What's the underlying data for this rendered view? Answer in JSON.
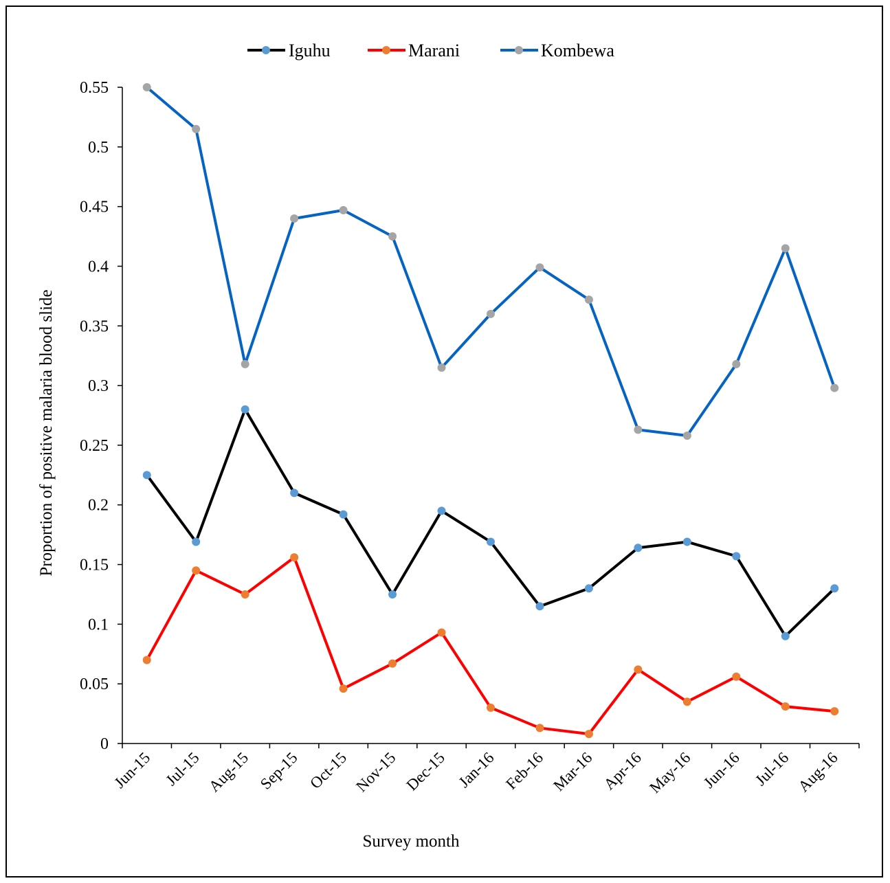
{
  "chart_data": {
    "type": "line",
    "xlabel": "Survey month",
    "ylabel": "Proportion of positive malaria blood slide",
    "ylim": [
      0,
      0.55
    ],
    "yticks": [
      "0",
      "0.05",
      "0.1",
      "0.15",
      "0.2",
      "0.25",
      "0.3",
      "0.35",
      "0.4",
      "0.45",
      "0.5",
      "0.55"
    ],
    "categories": [
      "Jun-15",
      "Jul-15",
      "Aug-15",
      "Sep-15",
      "Oct-15",
      "Nov-15",
      "Dec-15",
      "Jan-16",
      "Feb-16",
      "Mar-16",
      "Apr-16",
      "May-16",
      "Jun-16",
      "Jul-16",
      "Aug-16"
    ],
    "legend_position": "top-center",
    "grid": false,
    "series": [
      {
        "name": "Iguhu",
        "line_color": "#000000",
        "marker_color": "#5b9bd5",
        "values": [
          0.225,
          0.169,
          0.28,
          0.21,
          0.192,
          0.125,
          0.195,
          0.169,
          0.115,
          0.13,
          0.164,
          0.169,
          0.157,
          0.09,
          0.13
        ]
      },
      {
        "name": "Marani",
        "line_color": "#ff0000",
        "marker_color": "#ed7d31",
        "values": [
          0.07,
          0.145,
          0.125,
          0.156,
          0.046,
          0.067,
          0.093,
          0.03,
          0.013,
          0.008,
          0.062,
          0.035,
          0.056,
          0.031,
          0.027
        ]
      },
      {
        "name": "Kombewa",
        "line_color": "#0563c1",
        "marker_color": "#a5a5a5",
        "values": [
          0.55,
          0.515,
          0.318,
          0.44,
          0.447,
          0.425,
          0.315,
          0.36,
          0.399,
          0.372,
          0.263,
          0.258,
          0.318,
          0.415,
          0.298
        ]
      }
    ]
  }
}
